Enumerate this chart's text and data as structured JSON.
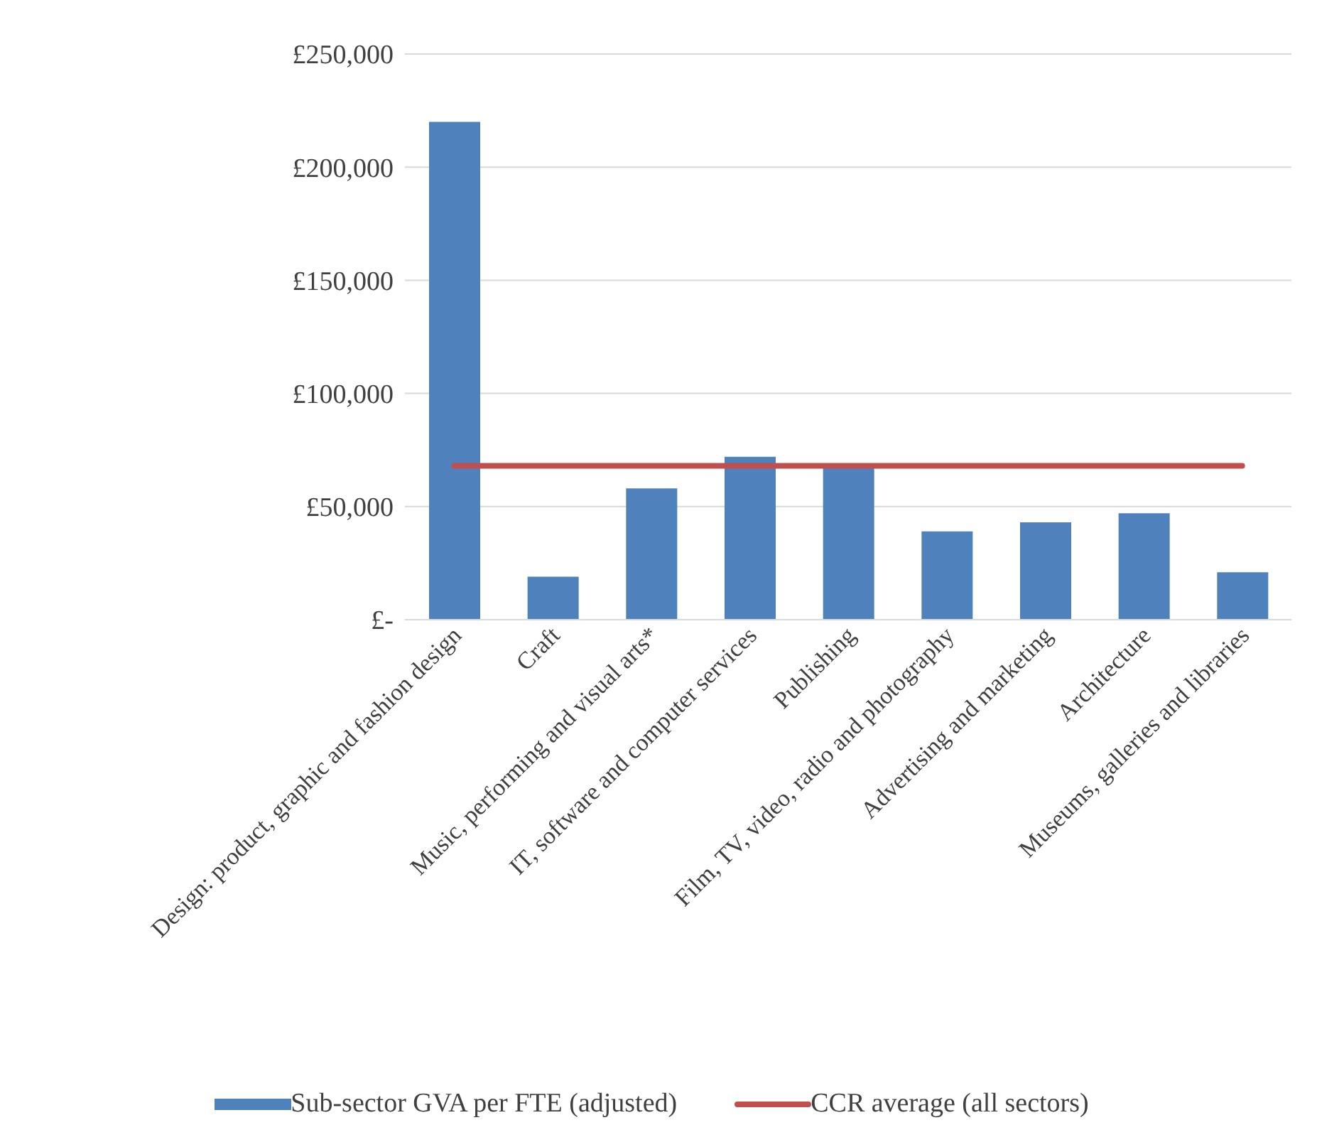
{
  "chart_data": {
    "type": "bar",
    "categories": [
      "Design: product, graphic and fashion design",
      "Craft",
      "Music, performing and visual arts*",
      "IT, software and computer services",
      "Publishing",
      "Film, TV, video, radio and photography",
      "Advertising and marketing",
      "Architecture",
      "Museums, galleries and libraries"
    ],
    "series": [
      {
        "name": "Sub-sector GVA per FTE (adjusted)",
        "color": "#4f81bd",
        "values": [
          220000,
          19000,
          58000,
          72000,
          67000,
          39000,
          43000,
          47000,
          21000
        ]
      },
      {
        "name": "CCR average (all sectors)",
        "type": "line",
        "color": "#c0504d",
        "values": [
          68000,
          68000,
          68000,
          68000,
          68000,
          68000,
          68000,
          68000,
          68000
        ]
      }
    ],
    "ylim": [
      0,
      250000
    ],
    "yticks": [
      {
        "value": 0,
        "label": "£-"
      },
      {
        "value": 50000,
        "label": "£50,000"
      },
      {
        "value": 100000,
        "label": "£100,000"
      },
      {
        "value": 150000,
        "label": "£150,000"
      },
      {
        "value": 200000,
        "label": "£200,000"
      },
      {
        "value": 250000,
        "label": "£250,000"
      }
    ],
    "grid": "y",
    "legend": "bottom"
  }
}
